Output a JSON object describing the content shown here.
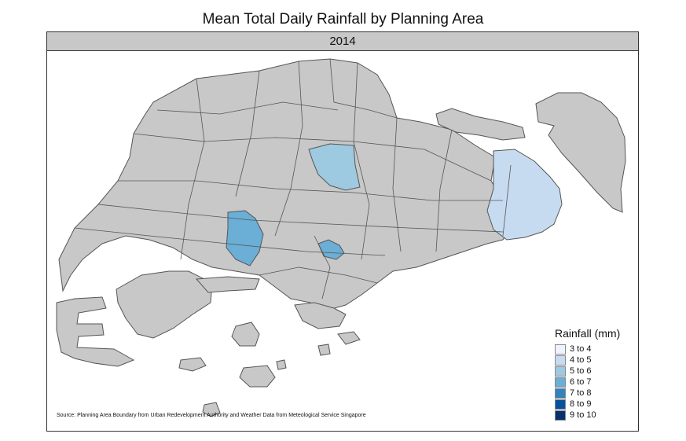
{
  "title": "Mean Total Daily Rainfall by Planning Area",
  "facet_label": "2014",
  "source_note": "Source: Planning Area Boundary from Urban Redevelopment Authority and Weather Data from Meteological Service Singapore",
  "legend": {
    "title": "Rainfall (mm)",
    "items": [
      {
        "label": "3 to 4",
        "color": "#eff3ff"
      },
      {
        "label": "4 to 5",
        "color": "#c6dbef"
      },
      {
        "label": "5 to 6",
        "color": "#9ecae1"
      },
      {
        "label": "6 to 7",
        "color": "#6baed6"
      },
      {
        "label": "7 to 8",
        "color": "#3182bd"
      },
      {
        "label": "8 to 9",
        "color": "#08519c"
      },
      {
        "label": "9 to 10",
        "color": "#08306b"
      }
    ]
  },
  "colors": {
    "no_data": "#c8c8c8",
    "boundary": "#555555"
  }
}
